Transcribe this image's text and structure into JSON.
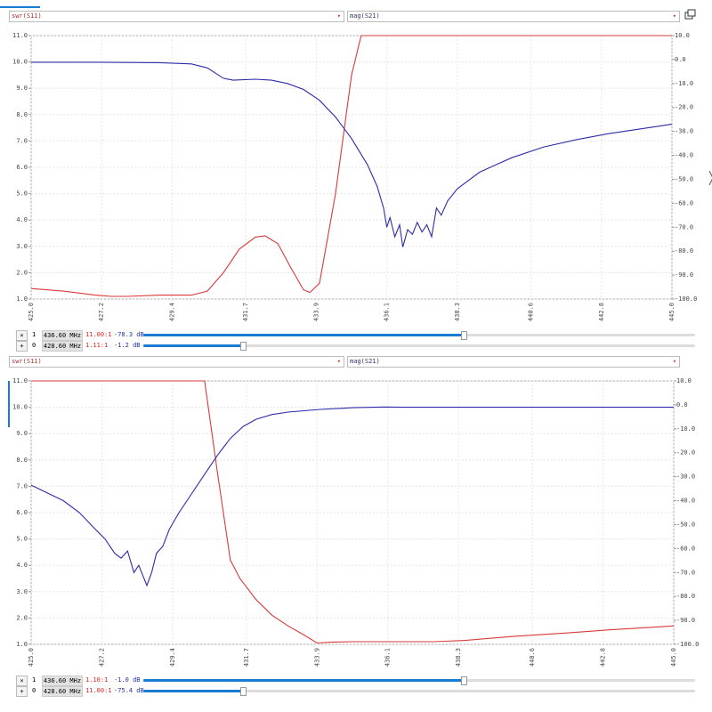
{
  "chart_data": [
    {
      "type": "line",
      "xlim": [
        425,
        445
      ],
      "ylim": [
        1,
        11
      ],
      "y2lim": [
        -100,
        10
      ],
      "xticks": [
        {
          "value": 425,
          "label": "425.0"
        },
        427.2,
        429.4,
        431.7,
        433.9,
        436.1,
        438.3,
        440.6,
        442.8,
        {
          "value": 445,
          "label": "445.0"
        }
      ],
      "yticks": [
        {
          "value": 1,
          "label": "1.0"
        },
        {
          "value": 2,
          "label": "2.0"
        },
        {
          "value": 3,
          "label": "3.0"
        },
        {
          "value": 4,
          "label": "4.0"
        },
        {
          "value": 5,
          "label": "5.0"
        },
        {
          "value": 6,
          "label": "6.0"
        },
        {
          "value": 7,
          "label": "7.0"
        },
        {
          "value": 8,
          "label": "8.0"
        },
        {
          "value": 9,
          "label": "9.0"
        },
        {
          "value": 10,
          "label": "10.0"
        },
        {
          "value": 11,
          "label": "11.0"
        }
      ],
      "y2ticks": [
        {
          "value": 10,
          "label": "10.0"
        },
        {
          "value": 0,
          "label": "0.0"
        },
        {
          "value": -10,
          "label": "-10.0"
        },
        {
          "value": -20,
          "label": "-20.0"
        },
        {
          "value": -30,
          "label": "-30.0"
        },
        {
          "value": -40,
          "label": "-40.0"
        },
        {
          "value": -50,
          "label": "-50.0"
        },
        {
          "value": -60,
          "label": "-60.0"
        },
        {
          "value": -70,
          "label": "-70.0"
        },
        {
          "value": -80,
          "label": "-80.0"
        },
        {
          "value": -90,
          "label": "-90.0"
        },
        {
          "value": -100,
          "label": "-100.0"
        }
      ],
      "grid": true,
      "series": [
        {
          "name": "swr(S11)",
          "color": "#d9393b",
          "x": [
            425,
            426,
            427,
            427.5,
            428,
            429,
            430,
            430.5,
            431,
            431.5,
            432,
            432.3,
            432.7,
            433.1,
            433.5,
            433.7,
            434,
            434.5,
            435,
            435.3,
            435.6,
            436,
            445
          ],
          "values": [
            1.4,
            1.3,
            1.15,
            1.1,
            1.1,
            1.15,
            1.15,
            1.3,
            2.0,
            2.9,
            3.35,
            3.4,
            3.1,
            2.2,
            1.35,
            1.25,
            1.6,
            5.0,
            9.5,
            11,
            11,
            11,
            11
          ]
        },
        {
          "name": "mag(S21)",
          "color": "#2c2ca8",
          "axis": "y2",
          "x": [
            425,
            427,
            429,
            430,
            430.5,
            431,
            431.3,
            432,
            432.5,
            433,
            433.5,
            434,
            434.5,
            435,
            435.5,
            435.8,
            436.0,
            436.1,
            436.2,
            436.35,
            436.5,
            436.6,
            436.75,
            436.9,
            437.05,
            437.2,
            437.35,
            437.5,
            437.65,
            437.8,
            438,
            438.3,
            438.6,
            439,
            439.5,
            440,
            441,
            442,
            443,
            444,
            445
          ],
          "values": [
            -1.1,
            -1.1,
            -1.3,
            -1.8,
            -3.5,
            -7.8,
            -8.6,
            -8.2,
            -8.6,
            -10,
            -12.5,
            -17,
            -24,
            -33,
            -44,
            -53,
            -62,
            -70,
            -66,
            -74,
            -69,
            -78.3,
            -71,
            -73,
            -68,
            -72,
            -69,
            -74,
            -62,
            -65,
            -59,
            -54,
            -51,
            -47,
            -44,
            -41,
            -36.5,
            -33.5,
            -31,
            -29,
            -27
          ]
        }
      ]
    },
    {
      "type": "line",
      "xlim": [
        425,
        445
      ],
      "ylim": [
        1,
        11
      ],
      "y2lim": [
        -100,
        10
      ],
      "xticks": [
        {
          "value": 425,
          "label": "425.0"
        },
        427.2,
        429.4,
        431.7,
        433.9,
        436.1,
        438.3,
        440.6,
        442.8,
        {
          "value": 445,
          "label": "445.0"
        }
      ],
      "yticks": [
        {
          "value": 1,
          "label": "1.0"
        },
        {
          "value": 2,
          "label": "2.0"
        },
        {
          "value": 3,
          "label": "3.0"
        },
        {
          "value": 4,
          "label": "4.0"
        },
        {
          "value": 5,
          "label": "5.0"
        },
        {
          "value": 6,
          "label": "6.0"
        },
        {
          "value": 7,
          "label": "7.0"
        },
        {
          "value": 8,
          "label": "8.0"
        },
        {
          "value": 9,
          "label": "9.0"
        },
        {
          "value": 10,
          "label": "10.0"
        },
        {
          "value": 11,
          "label": "11.0"
        }
      ],
      "y2ticks": [
        {
          "value": 10,
          "label": "10.0"
        },
        {
          "value": 0,
          "label": "0.0"
        },
        {
          "value": -10,
          "label": "-10.0"
        },
        {
          "value": -20,
          "label": "-20.0"
        },
        {
          "value": -30,
          "label": "-30.0"
        },
        {
          "value": -40,
          "label": "-40.0"
        },
        {
          "value": -50,
          "label": "-50.0"
        },
        {
          "value": -60,
          "label": "-60.0"
        },
        {
          "value": -70,
          "label": "-70.0"
        },
        {
          "value": -80,
          "label": "-80.0"
        },
        {
          "value": -90,
          "label": "-90.0"
        },
        {
          "value": -100,
          "label": "-100.0"
        }
      ],
      "grid": true,
      "series": [
        {
          "name": "swr(S11)",
          "color": "#d9393b",
          "x": [
            425,
            430.4,
            430.8,
            431.2,
            431.5,
            432,
            432.5,
            433,
            433.5,
            433.9,
            434.3,
            435,
            436,
            436.6,
            437.5,
            438.5,
            440,
            441.5,
            443,
            445
          ],
          "values": [
            11,
            11,
            7.5,
            4.2,
            3.5,
            2.7,
            2.1,
            1.7,
            1.35,
            1.05,
            1.08,
            1.1,
            1.1,
            1.1,
            1.1,
            1.15,
            1.3,
            1.42,
            1.55,
            1.7
          ]
        },
        {
          "name": "mag(S21)",
          "color": "#2c2ca8",
          "axis": "y2",
          "x": [
            425,
            426,
            426.5,
            427,
            427.3,
            427.6,
            427.8,
            428,
            428.2,
            428.35,
            428.5,
            428.6,
            428.75,
            428.9,
            429.1,
            429.3,
            429.6,
            430,
            430.4,
            430.8,
            431.2,
            431.6,
            432,
            432.5,
            433,
            434,
            435,
            436,
            436.6,
            440,
            445
          ],
          "values": [
            -33.5,
            -40,
            -45,
            -52,
            -56,
            -62,
            -64,
            -61,
            -70,
            -67,
            -72,
            -75.4,
            -70,
            -62,
            -59,
            -52,
            -45,
            -37,
            -29,
            -21,
            -14,
            -9,
            -6,
            -4,
            -3,
            -1.9,
            -1.2,
            -0.9,
            -1.0,
            -1,
            -1
          ]
        }
      ]
    }
  ],
  "marker_panels": [
    {
      "markers": [
        {
          "button": "×",
          "id": "1",
          "frequency": "436.60 MHz",
          "swr": "11.00:1",
          "mag": "-78.3 dB"
        },
        {
          "button": "+",
          "id": "0",
          "frequency": "428.60 MHz",
          "swr": "1.11:1",
          "mag": "-1.2 dB"
        }
      ]
    },
    {
      "markers": [
        {
          "button": "×",
          "id": "1",
          "frequency": "436.60 MHz",
          "swr": "1.10:1",
          "mag": "-1.0 dB"
        },
        {
          "button": "+",
          "id": "0",
          "frequency": "428.60 MHz",
          "swr": "11.00:1",
          "mag": "-75.4 dB"
        }
      ]
    }
  ]
}
